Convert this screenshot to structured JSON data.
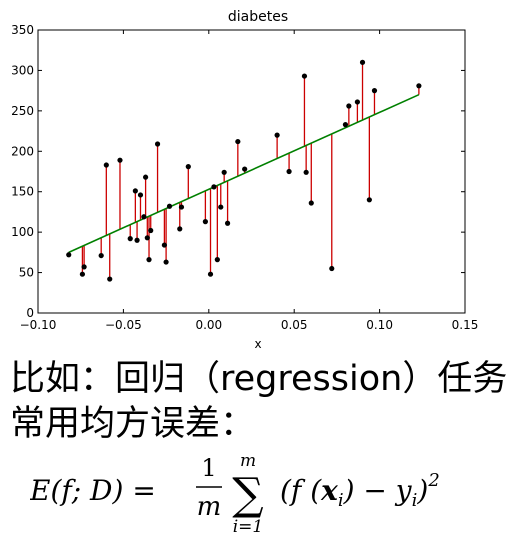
{
  "chart_data": {
    "type": "scatter",
    "title": "diabetes",
    "xlabel": "x",
    "ylabel": "",
    "xlim": [
      -0.1,
      0.15
    ],
    "ylim": [
      0,
      350
    ],
    "xticks": [
      "−0.10",
      "−0.05",
      "0.00",
      "0.05",
      "0.10",
      "0.15"
    ],
    "xtick_values": [
      -0.1,
      -0.05,
      0.0,
      0.05,
      0.1,
      0.15
    ],
    "yticks": [
      "0",
      "50",
      "100",
      "150",
      "200",
      "250",
      "300",
      "350"
    ],
    "ytick_values": [
      0,
      50,
      100,
      150,
      200,
      250,
      300,
      350
    ],
    "grid": false,
    "colors": {
      "points": "#000000",
      "fit_line": "#008000",
      "residuals": "#cc0000"
    },
    "regression_line": {
      "x": [
        -0.082,
        0.123
      ],
      "y": [
        75,
        270
      ]
    },
    "points": {
      "x": [
        -0.082,
        -0.074,
        -0.073,
        -0.063,
        -0.06,
        -0.058,
        -0.052,
        -0.046,
        -0.043,
        -0.042,
        -0.04,
        -0.038,
        -0.037,
        -0.036,
        -0.035,
        -0.034,
        -0.03,
        -0.026,
        -0.025,
        -0.023,
        -0.017,
        -0.016,
        -0.012,
        -0.002,
        0.001,
        0.003,
        0.005,
        0.007,
        0.009,
        0.011,
        0.017,
        0.021,
        0.04,
        0.047,
        0.056,
        0.057,
        0.06,
        0.072,
        0.08,
        0.082,
        0.087,
        0.09,
        0.094,
        0.097,
        0.123
      ],
      "y": [
        72,
        48,
        57,
        71,
        183,
        42,
        189,
        92,
        151,
        90,
        146,
        119,
        168,
        93,
        66,
        102,
        209,
        84,
        63,
        132,
        104,
        131,
        181,
        113,
        48,
        156,
        66,
        131,
        174,
        111,
        212,
        178,
        220,
        175,
        293,
        174,
        136,
        55,
        233,
        256,
        261,
        310,
        140,
        275,
        281
      ]
    }
  },
  "captions": {
    "line1": "比如：回归（regression）任务",
    "line2": "常用均方误差："
  },
  "formula": {
    "lhs": "E(f; D) =",
    "frac_num": "1",
    "frac_den": "m",
    "sum_symbol": "∑",
    "sum_upper": "m",
    "sum_lower": "i=1",
    "body": "(f (",
    "xi_base": "x",
    "xi_sub": "i",
    "mid": ") − y",
    "yi_sub": "i",
    "close": ")",
    "exponent": "2"
  }
}
